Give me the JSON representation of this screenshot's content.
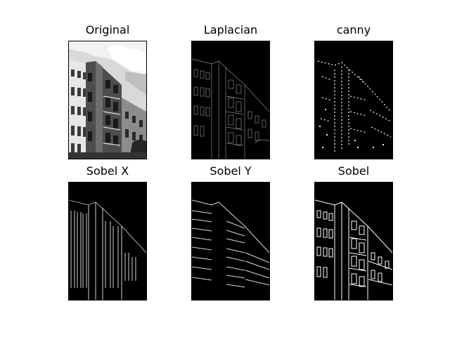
{
  "figure": {
    "background_color": "#ffffff",
    "panels": [
      {
        "id": "original",
        "title": "Original",
        "style": "photo"
      },
      {
        "id": "laplacian",
        "title": "Laplacian",
        "style": "edges-soft"
      },
      {
        "id": "canny",
        "title": "canny",
        "style": "edges-sparse"
      },
      {
        "id": "sobel-x",
        "title": "Sobel X",
        "style": "edges-vertical"
      },
      {
        "id": "sobel-y",
        "title": "Sobel Y",
        "style": "edges-horizontal"
      },
      {
        "id": "sobel",
        "title": "Sobel",
        "style": "edges-combined"
      }
    ]
  }
}
